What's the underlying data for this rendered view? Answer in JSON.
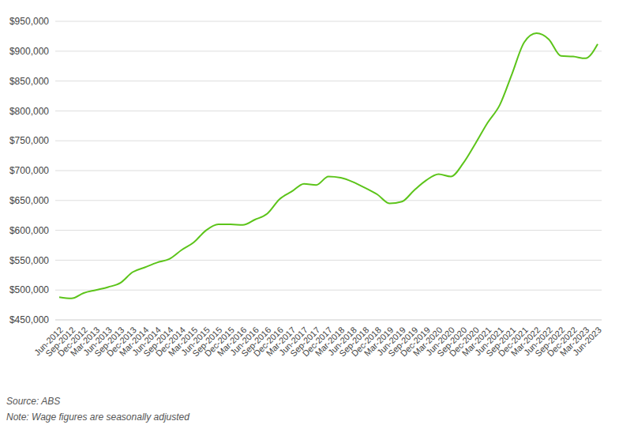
{
  "chart_data": {
    "type": "line",
    "categories": [
      "Jun-2012",
      "Sep-2012",
      "Dec-2012",
      "Mar-2013",
      "Jun-2013",
      "Sep-2013",
      "Dec-2013",
      "Mar-2014",
      "Jun-2014",
      "Sep-2014",
      "Dec-2014",
      "Mar-2015",
      "Jun-2015",
      "Sep-2015",
      "Dec-2015",
      "Mar-2016",
      "Jun-2016",
      "Sep-2016",
      "Dec-2016",
      "Mar-2017",
      "Jun-2017",
      "Sep-2017",
      "Dec-2017",
      "Mar-2018",
      "Jun-2018",
      "Sep-2018",
      "Dec-2018",
      "Mar-2019",
      "Jun-2019",
      "Sep-2019",
      "Dec-2019",
      "Mar-2020",
      "Jun-2020",
      "Sep-2020",
      "Dec-2020",
      "Mar-2021",
      "Jun-2021",
      "Sep-2021",
      "Dec-2021",
      "Mar-2022",
      "Jun-2022",
      "Sep-2022",
      "Dec-2022",
      "Mar-2023",
      "Jun-2023"
    ],
    "values": [
      488000,
      486000,
      495000,
      500000,
      505000,
      512000,
      530000,
      538000,
      546000,
      552000,
      567000,
      580000,
      600000,
      610000,
      610000,
      609000,
      618000,
      628000,
      652000,
      665000,
      678000,
      676000,
      690000,
      688000,
      681000,
      671000,
      660000,
      645000,
      648000,
      667000,
      684000,
      694000,
      690000,
      712000,
      745000,
      780000,
      810000,
      862000,
      915000,
      930000,
      920000,
      892000,
      891000,
      888000,
      912000
    ],
    "color": "#5cc41a",
    "ylim": [
      450000,
      950000
    ],
    "yticks": [
      {
        "value": 450000,
        "label": "$450,000"
      },
      {
        "value": 500000,
        "label": "$500,000"
      },
      {
        "value": 550000,
        "label": "$550,000"
      },
      {
        "value": 600000,
        "label": "$600,000"
      },
      {
        "value": 650000,
        "label": "$650,000"
      },
      {
        "value": 700000,
        "label": "$700,000"
      },
      {
        "value": 750000,
        "label": "$750,000"
      },
      {
        "value": 800000,
        "label": "$800,000"
      },
      {
        "value": 850000,
        "label": "$850,000"
      },
      {
        "value": 900000,
        "label": "$900,000"
      },
      {
        "value": 950000,
        "label": "$950,000"
      }
    ],
    "grid": true,
    "annotations": [
      "Source: ABS",
      "Note: Wage figures are seasonally adjusted"
    ]
  }
}
